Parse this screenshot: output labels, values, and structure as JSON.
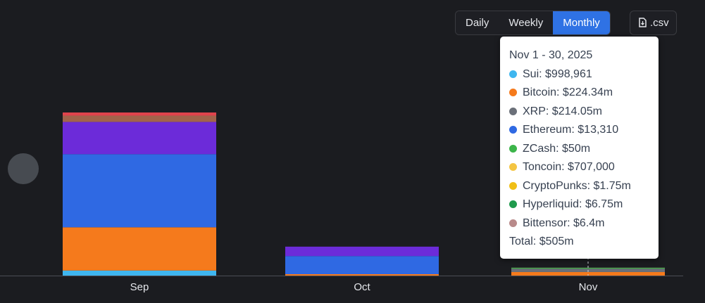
{
  "chart_data": {
    "type": "bar",
    "stacked": true,
    "categories": [
      "Sep",
      "Oct",
      "Nov"
    ],
    "buttons": [
      "Daily",
      "Weekly",
      "Monthly"
    ],
    "active_button": 2,
    "download": ".csv",
    "series": [
      {
        "name": "Sui",
        "color": "#3fb6ef",
        "values": [
          320000000,
          0,
          998961
        ],
        "value_labels": [
          null,
          null,
          "$998,961"
        ]
      },
      {
        "name": "Bitcoin",
        "color": "#f57a1c",
        "values": [
          2750000000,
          90000000,
          224340000
        ],
        "value_labels": [
          null,
          null,
          "$224.34m"
        ]
      },
      {
        "name": "XRP",
        "color": "#6b7079",
        "values": [
          0,
          0,
          214050000
        ],
        "value_labels": [
          null,
          null,
          "$214.05m"
        ]
      },
      {
        "name": "Ethereum",
        "color": "#2f69e3",
        "values": [
          4650000000,
          1150000000,
          13310
        ],
        "value_labels": [
          null,
          null,
          "$13,310"
        ]
      },
      {
        "name": "ZCash",
        "color": "#3cb54a",
        "values": [
          0,
          0,
          50000000
        ],
        "value_labels": [
          null,
          null,
          "$50m"
        ]
      },
      {
        "name": "Toncoin",
        "color": "#f4c542",
        "values": [
          0,
          0,
          707000
        ],
        "value_labels": [
          null,
          null,
          "$707,000"
        ]
      },
      {
        "name": "CryptoPunks",
        "color": "#f0bf16",
        "values": [
          0,
          0,
          1750000
        ],
        "value_labels": [
          null,
          null,
          "$1.75m"
        ]
      },
      {
        "name": "Hyperliquid",
        "color": "#1f9a4c",
        "values": [
          0,
          0,
          6750000
        ],
        "value_labels": [
          null,
          null,
          "$6.75m"
        ]
      },
      {
        "name": "Bittensor",
        "color": "#b98a8a",
        "values": [
          0,
          0,
          6400000
        ],
        "value_labels": [
          null,
          null,
          "$6.4m"
        ]
      },
      {
        "color": "#6c2bd9",
        "values": [
          2050000000,
          600000000,
          0
        ]
      },
      {
        "color": "#a2634b",
        "values": [
          400000000,
          0,
          0
        ]
      },
      {
        "color": "#e0434c",
        "values": [
          200000000,
          0,
          0
        ]
      }
    ],
    "tooltip": {
      "title": "Nov 1 - 30, 2025",
      "category": 2,
      "total": {
        "label": "Total",
        "value": 505000000,
        "value_label": "$505m"
      }
    }
  }
}
